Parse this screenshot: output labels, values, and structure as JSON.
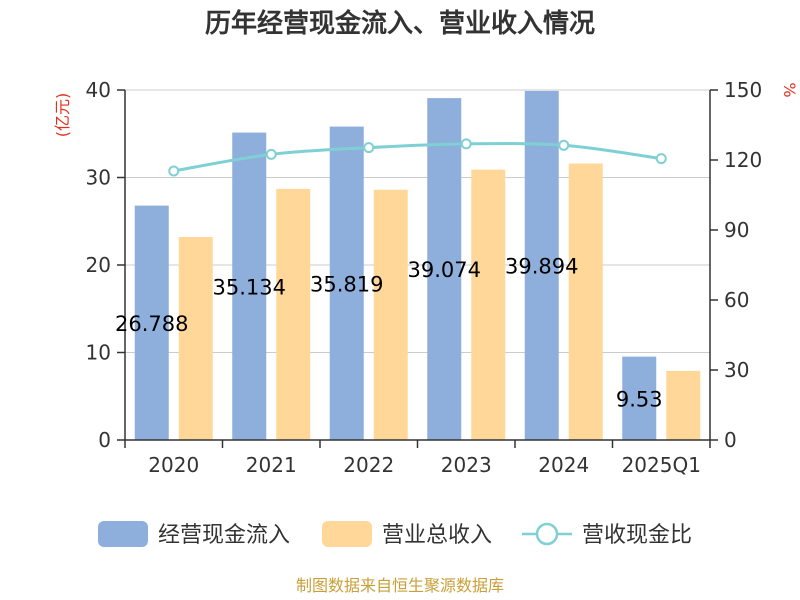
{
  "chart_data": {
    "type": "bar",
    "title": "历年经营现金流入、营业收入情况",
    "categories": [
      "2020",
      "2021",
      "2022",
      "2023",
      "2024",
      "2025Q1"
    ],
    "series": [
      {
        "name": "经营现金流入",
        "type": "bar",
        "axis": "left",
        "color": "#8eaedb",
        "values": [
          26.788,
          35.134,
          35.819,
          39.074,
          39.894,
          9.53
        ],
        "labels": [
          "26.788",
          "35.134",
          "35.819",
          "39.074",
          "39.894",
          "9.53"
        ]
      },
      {
        "name": "营业总收入",
        "type": "bar",
        "axis": "left",
        "color": "#ffd899",
        "values": [
          23.2,
          28.7,
          28.6,
          30.9,
          31.6,
          7.9
        ]
      },
      {
        "name": "营收现金比",
        "type": "line",
        "axis": "right",
        "color": "#7fd0d4",
        "values": [
          115.3,
          122.4,
          125.3,
          126.9,
          126.3,
          120.6
        ]
      }
    ],
    "left_axis": {
      "unit": "(亿元)",
      "ylim": [
        0,
        40
      ],
      "ticks": [
        "0",
        "10",
        "20",
        "30",
        "40"
      ]
    },
    "right_axis": {
      "unit": "%",
      "ylim": [
        0,
        150
      ],
      "ticks": [
        "0",
        "30",
        "60",
        "90",
        "120",
        "150"
      ]
    },
    "grid": true,
    "legend_position": "bottom"
  },
  "source": "制图数据来自恒生聚源数据库"
}
